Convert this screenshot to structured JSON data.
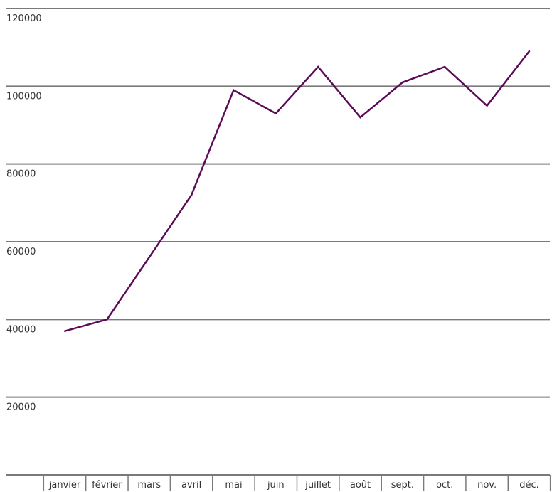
{
  "chart_data": {
    "type": "line",
    "categories": [
      "janvier",
      "février",
      "mars",
      "avril",
      "mai",
      "juin",
      "juillet",
      "août",
      "sept.",
      "oct.",
      "nov.",
      "déc."
    ],
    "series": [
      {
        "values": [
          37000,
          40000,
          56000,
          72000,
          99000,
          93000,
          105000,
          92000,
          101000,
          105000,
          95000,
          109000
        ],
        "color": "#5a0a57"
      }
    ],
    "yticks": [
      20000,
      40000,
      60000,
      80000,
      100000,
      120000
    ],
    "ylim": [
      0,
      120000
    ],
    "grid": true,
    "title": "",
    "xlabel": "",
    "ylabel": "",
    "colors": {
      "grid": "#7a7a7a",
      "text": "#333333",
      "line": "#5a0a57"
    }
  }
}
